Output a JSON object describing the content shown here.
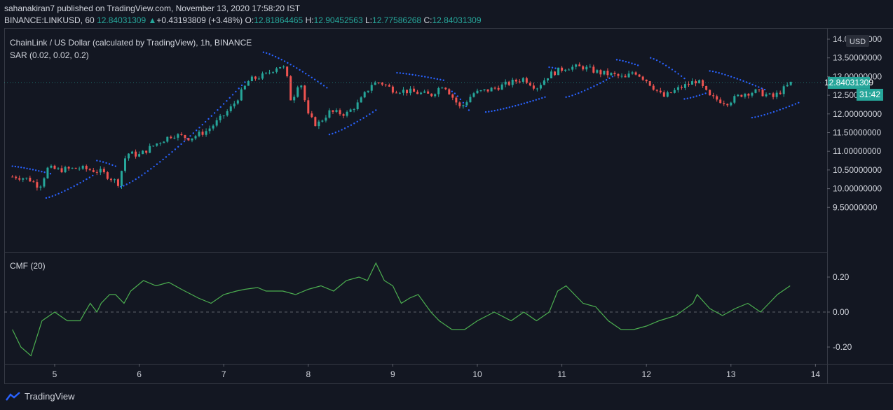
{
  "header": {
    "published": "sahanakiran7 published on TradingView.com, November 13, 2020 17:58:20 IST",
    "symbol": "BINANCE:LINKUSD, 60",
    "last": "12.84031309",
    "change": "+0.43193809 (+3.48%)",
    "o_label": "O:",
    "o_value": "12.81864465",
    "h_label": "H:",
    "h_value": "12.90452563",
    "l_label": "L:",
    "l_value": "12.77586268",
    "c_label": "C:",
    "c_value": "12.84031309"
  },
  "main_panel": {
    "title": "ChainLink / US Dollar (calculated by TradingView), 1h, BINANCE",
    "indicator": "SAR (0.02, 0.02, 0.2)",
    "currency": "USD",
    "price_tag": "12.84031309",
    "countdown": "31:42"
  },
  "cmf_panel": {
    "title": "CMF (20)"
  },
  "brand": {
    "name": "TradingView"
  },
  "colors": {
    "bg": "#131722",
    "up": "#26a69a",
    "down": "#ef5350",
    "sar": "#2962ff",
    "cmf": "#4caf50",
    "grid": "#2a2e39",
    "axis_text": "#d1d4dc",
    "tag": "#26a69a"
  },
  "chart_data": [
    {
      "type": "candlestick",
      "title": "ChainLink / US Dollar (calculated by TradingView), 1h, BINANCE",
      "ylim": [
        9.3,
        14.05
      ],
      "y_ticks": [
        "14.00000000",
        "13.50000000",
        "13.00000000",
        "12.50000000",
        "12.00000000",
        "11.50000000",
        "11.00000000",
        "10.50000000",
        "10.00000000",
        "9.50000000"
      ],
      "x_ticks": [
        "5",
        "6",
        "7",
        "8",
        "9",
        "10",
        "11",
        "12",
        "13",
        "14"
      ],
      "close_anchors": [
        [
          4.56,
          10.32
        ],
        [
          4.7,
          10.25
        ],
        [
          4.82,
          10.05
        ],
        [
          4.92,
          10.55
        ],
        [
          5.05,
          10.5
        ],
        [
          5.3,
          10.55
        ],
        [
          5.55,
          10.45
        ],
        [
          5.75,
          10.15
        ],
        [
          5.85,
          10.95
        ],
        [
          6.0,
          10.9
        ],
        [
          6.2,
          11.2
        ],
        [
          6.4,
          11.45
        ],
        [
          6.6,
          11.35
        ],
        [
          6.8,
          11.55
        ],
        [
          6.95,
          11.85
        ],
        [
          7.1,
          12.2
        ],
        [
          7.2,
          12.55
        ],
        [
          7.3,
          12.9
        ],
        [
          7.5,
          13.05
        ],
        [
          7.65,
          13.3
        ],
        [
          7.73,
          13.2
        ],
        [
          7.8,
          12.3
        ],
        [
          7.9,
          12.95
        ],
        [
          8.0,
          11.95
        ],
        [
          8.1,
          11.7
        ],
        [
          8.25,
          12.05
        ],
        [
          8.45,
          12.0
        ],
        [
          8.6,
          12.3
        ],
        [
          8.75,
          12.8
        ],
        [
          8.85,
          12.85
        ],
        [
          9.0,
          12.65
        ],
        [
          9.2,
          12.6
        ],
        [
          9.45,
          12.5
        ],
        [
          9.6,
          12.8
        ],
        [
          9.8,
          12.15
        ],
        [
          9.95,
          12.55
        ],
        [
          10.15,
          12.65
        ],
        [
          10.35,
          12.8
        ],
        [
          10.55,
          12.95
        ],
        [
          10.7,
          12.7
        ],
        [
          10.85,
          13.05
        ],
        [
          11.05,
          13.25
        ],
        [
          11.25,
          13.25
        ],
        [
          11.45,
          13.1
        ],
        [
          11.6,
          13.05
        ],
        [
          11.75,
          12.95
        ],
        [
          11.85,
          13.15
        ],
        [
          12.0,
          12.9
        ],
        [
          12.2,
          12.45
        ],
        [
          12.4,
          12.7
        ],
        [
          12.6,
          12.9
        ],
        [
          12.75,
          12.45
        ],
        [
          12.95,
          12.3
        ],
        [
          13.15,
          12.55
        ],
        [
          13.3,
          12.6
        ],
        [
          13.5,
          12.45
        ],
        [
          13.72,
          12.84
        ]
      ],
      "series": [
        {
          "name": "SAR (0.02, 0.02, 0.2)",
          "segments": [
            {
              "x": [
                4.5,
                4.95
              ],
              "y": [
                10.6,
                10.4
              ]
            },
            {
              "x": [
                4.9,
                5.45
              ],
              "y": [
                9.75,
                10.35
              ]
            },
            {
              "x": [
                5.5,
                5.72
              ],
              "y": [
                10.75,
                10.6
              ]
            },
            {
              "x": [
                5.78,
                7.25
              ],
              "y": [
                10.05,
                12.85
              ]
            },
            {
              "x": [
                7.47,
                8.22
              ],
              "y": [
                13.65,
                12.7
              ]
            },
            {
              "x": [
                8.25,
                8.8
              ],
              "y": [
                11.45,
                12.1
              ]
            },
            {
              "x": [
                9.05,
                9.6
              ],
              "y": [
                13.1,
                12.9
              ]
            },
            {
              "x": [
                9.7,
                9.9
              ],
              "y": [
                12.6,
                12.1
              ]
            },
            {
              "x": [
                10.1,
                10.8
              ],
              "y": [
                12.05,
                12.45
              ]
            },
            {
              "x": [
                10.85,
                11.0
              ],
              "y": [
                13.25,
                13.18
              ]
            },
            {
              "x": [
                11.05,
                11.6
              ],
              "y": [
                12.45,
                13.0
              ]
            },
            {
              "x": [
                11.65,
                11.9
              ],
              "y": [
                13.45,
                13.3
              ]
            },
            {
              "x": [
                12.05,
                12.45
              ],
              "y": [
                13.5,
                12.95
              ]
            },
            {
              "x": [
                12.45,
                12.7
              ],
              "y": [
                12.4,
                12.55
              ]
            },
            {
              "x": [
                12.75,
                13.4
              ],
              "y": [
                13.15,
                12.65
              ]
            },
            {
              "x": [
                13.25,
                13.8
              ],
              "y": [
                11.9,
                12.3
              ]
            }
          ]
        }
      ]
    },
    {
      "type": "line",
      "title": "CMF (20)",
      "ylim": [
        -0.3,
        0.3
      ],
      "y_ticks": [
        "0.20",
        "0.00",
        "-0.20"
      ],
      "x_ticks": [
        "5",
        "6",
        "7",
        "8",
        "9",
        "10",
        "11",
        "12",
        "13",
        "14"
      ],
      "series": [
        {
          "name": "CMF (20)",
          "x": [
            4.5,
            4.6,
            4.72,
            4.85,
            5.0,
            5.15,
            5.3,
            5.42,
            5.5,
            5.55,
            5.65,
            5.72,
            5.82,
            5.9,
            6.05,
            6.2,
            6.35,
            6.5,
            6.7,
            6.85,
            7.0,
            7.15,
            7.25,
            7.4,
            7.5,
            7.7,
            7.85,
            8.0,
            8.15,
            8.3,
            8.45,
            8.6,
            8.7,
            8.8,
            8.9,
            9.0,
            9.1,
            9.2,
            9.3,
            9.45,
            9.55,
            9.7,
            9.85,
            10.0,
            10.2,
            10.4,
            10.55,
            10.7,
            10.85,
            10.95,
            11.05,
            11.25,
            11.4,
            11.55,
            11.7,
            11.85,
            12.0,
            12.15,
            12.35,
            12.55,
            12.6,
            12.75,
            12.9,
            13.05,
            13.2,
            13.35,
            13.45,
            13.55,
            13.7
          ],
          "y": [
            -0.1,
            -0.2,
            -0.25,
            -0.05,
            0.0,
            -0.05,
            -0.05,
            0.05,
            0.0,
            0.05,
            0.1,
            0.1,
            0.05,
            0.12,
            0.18,
            0.15,
            0.17,
            0.13,
            0.08,
            0.05,
            0.1,
            0.12,
            0.13,
            0.14,
            0.12,
            0.12,
            0.1,
            0.13,
            0.15,
            0.12,
            0.18,
            0.2,
            0.18,
            0.28,
            0.18,
            0.15,
            0.05,
            0.08,
            0.1,
            0.0,
            -0.05,
            -0.1,
            -0.1,
            -0.05,
            0.0,
            -0.05,
            0.0,
            -0.05,
            0.0,
            0.12,
            0.15,
            0.05,
            0.03,
            -0.05,
            -0.1,
            -0.1,
            -0.08,
            -0.05,
            -0.02,
            0.05,
            0.1,
            0.02,
            -0.02,
            0.02,
            0.05,
            0.0,
            0.05,
            0.1,
            0.15
          ]
        }
      ]
    }
  ]
}
